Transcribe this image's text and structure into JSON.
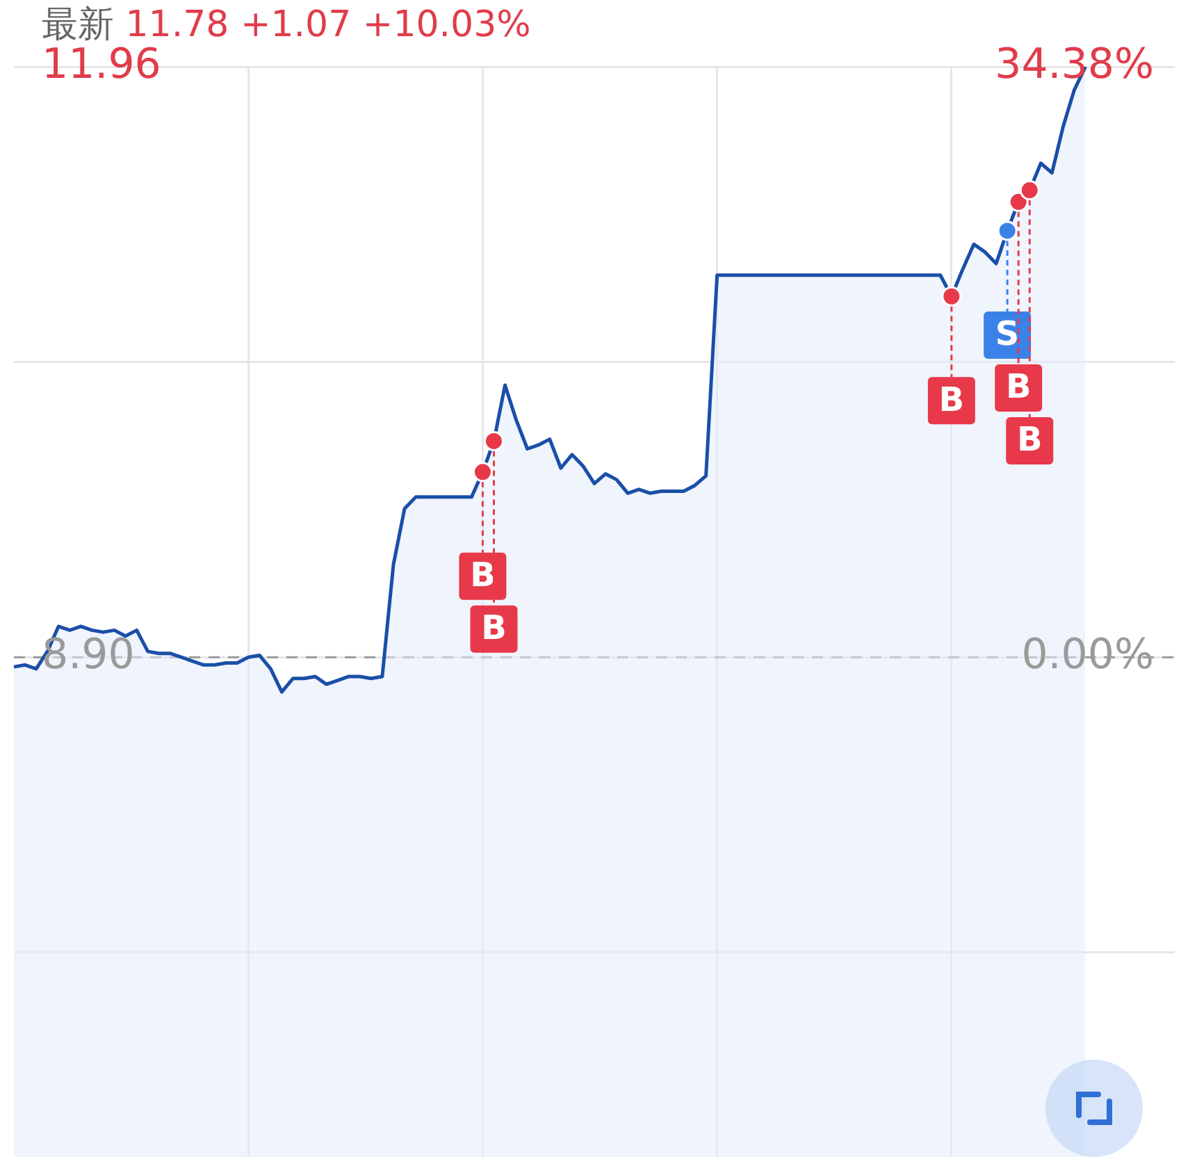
{
  "chart_data": {
    "type": "area",
    "title": "最新 11.78 +1.07 +10.03%",
    "categories": [
      null,
      null,
      null,
      null,
      null,
      null,
      null,
      null,
      null,
      null,
      null,
      null,
      null,
      null,
      null,
      null,
      null,
      null,
      null,
      null,
      null,
      null,
      null,
      null,
      null,
      null,
      null,
      null,
      null,
      null,
      null,
      null,
      null,
      null,
      null,
      null,
      null,
      null,
      null,
      null,
      null,
      null,
      null,
      null,
      null,
      null,
      null,
      null,
      null,
      null,
      null,
      null,
      null,
      null,
      null,
      null,
      null,
      null,
      null,
      null,
      null,
      null,
      null,
      null,
      null,
      null,
      null,
      null,
      null,
      null,
      null,
      null,
      null,
      null,
      null,
      null,
      null,
      null,
      null,
      null,
      null,
      null,
      null,
      null,
      null,
      null,
      null,
      null,
      null,
      null,
      null,
      null,
      null,
      null,
      null,
      null,
      null,
      null,
      null,
      null,
      null,
      null,
      null,
      null,
      null
    ],
    "ylim": [
      6.31,
      11.96
    ],
    "yticks": [
      {
        "value": 11.96,
        "label": "11.96"
      },
      {
        "value": 10.43,
        "label": null
      },
      {
        "value": 8.9,
        "label": "8.90"
      },
      {
        "value": 7.37,
        "label": null
      }
    ],
    "y2lim": [
      -29.1,
      34.38
    ],
    "y2ticks": [
      {
        "value": 34.38,
        "label": "34.38%"
      },
      {
        "value": 0,
        "label": "0.00%"
      }
    ],
    "grid": true,
    "line_style": "solid",
    "ref_lines": [
      {
        "axis": "y",
        "value": 8.9,
        "color": "#9a9a9a",
        "line_style": "dashed"
      }
    ],
    "series": [
      {
        "color": "#1a4fa8",
        "values": [
          8.85,
          8.86,
          8.84,
          8.93,
          9.06,
          9.04,
          9.06,
          9.04,
          9.03,
          9.04,
          9.01,
          9.04,
          8.93,
          8.92,
          8.92,
          8.9,
          8.88,
          8.86,
          8.86,
          8.87,
          8.87,
          8.9,
          8.91,
          8.84,
          8.72,
          8.79,
          8.79,
          8.8,
          8.76,
          8.78,
          8.8,
          8.8,
          8.79,
          8.8,
          9.38,
          9.67,
          9.73,
          9.73,
          9.73,
          9.73,
          9.73,
          9.73,
          9.86,
          10.02,
          10.31,
          10.13,
          9.98,
          10,
          10.03,
          9.88,
          9.95,
          9.89,
          9.8,
          9.85,
          9.82,
          9.75,
          9.77,
          9.75,
          9.76,
          9.76,
          9.76,
          9.79,
          9.84,
          10.88,
          10.88,
          10.88,
          10.88,
          10.88,
          10.88,
          10.88,
          10.88,
          10.88,
          10.88,
          10.88,
          10.88,
          10.88,
          10.88,
          10.88,
          10.88,
          10.88,
          10.88,
          10.88,
          10.88,
          10.88,
          10.77,
          10.91,
          11.04,
          11,
          10.94,
          11.11,
          11.26,
          11.32,
          11.46,
          11.41,
          11.65,
          11.84,
          11.96,
          null,
          null,
          null,
          null,
          null,
          null,
          null,
          null
        ]
      }
    ],
    "annotations": [
      {
        "text": "B",
        "y": 9.86
      },
      {
        "text": "B",
        "y": 10.02
      },
      {
        "text": "B",
        "y": 10.77
      },
      {
        "text": "S",
        "y": 11.11
      },
      {
        "text": "B",
        "y": 11.26
      },
      {
        "text": "B",
        "y": 11.32
      }
    ]
  }
}
